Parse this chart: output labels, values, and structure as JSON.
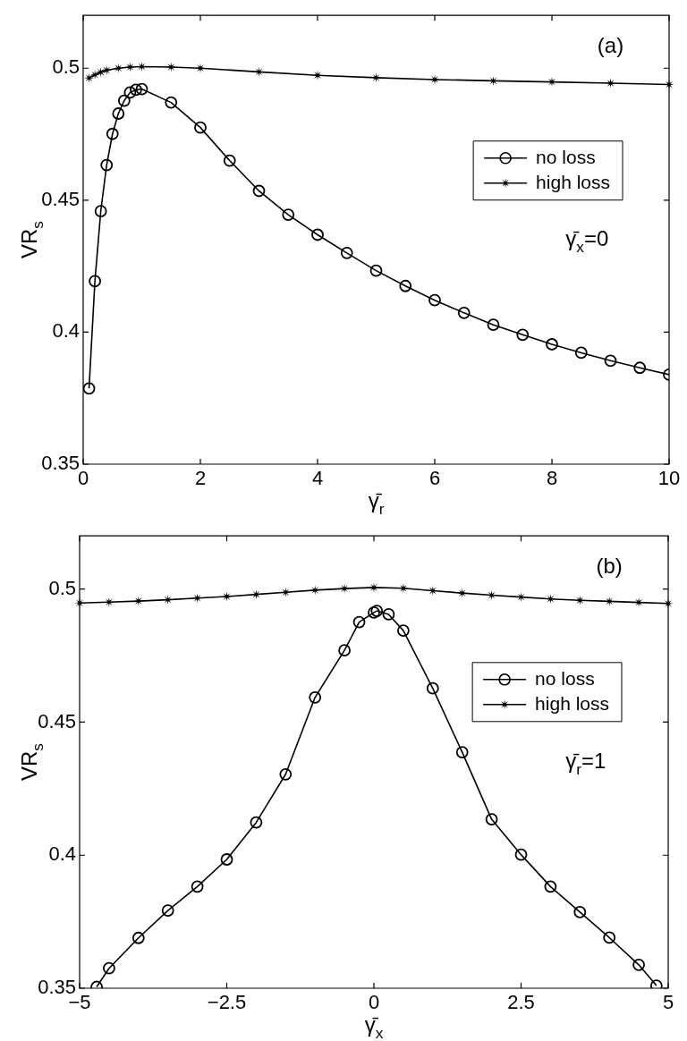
{
  "chart_data": [
    {
      "type": "line",
      "xlabel": "γ̄$_{r}$",
      "ylabel": "VR$_{s}$",
      "xlim": [
        0,
        10
      ],
      "ylim": [
        0.35,
        0.52
      ],
      "xticks": [
        0,
        2,
        4,
        6,
        8,
        10
      ],
      "yticks": [
        0.35,
        0.4,
        0.45,
        0.5
      ],
      "legend": "right",
      "line_style": "solid",
      "annotations": [
        "(a)",
        "γ̄$_{x}$=0"
      ],
      "series": [
        {
          "name": "no loss",
          "color": "#000000",
          "marker": "circle",
          "x": [
            0.1,
            0.2,
            0.3,
            0.4,
            0.5,
            0.6,
            0.7,
            0.8,
            0.9,
            1.0,
            1.5,
            2,
            2.5,
            3,
            3.5,
            4,
            4.5,
            5,
            5.5,
            6,
            6.5,
            7,
            7.5,
            8,
            8.5,
            9,
            9.5,
            10
          ],
          "values": [
            0.3787,
            0.4193,
            0.4458,
            0.4633,
            0.4751,
            0.4828,
            0.4877,
            0.4908,
            0.4918,
            0.4921,
            0.487,
            0.4775,
            0.465,
            0.4535,
            0.4445,
            0.4369,
            0.43,
            0.4233,
            0.4175,
            0.4121,
            0.4073,
            0.4028,
            0.399,
            0.3954,
            0.3922,
            0.3892,
            0.3865,
            0.3839
          ]
        },
        {
          "name": "high loss",
          "color": "#000000",
          "marker": "star",
          "x": [
            0.1,
            0.2,
            0.3,
            0.4,
            0.6,
            0.8,
            1,
            1.5,
            2,
            3,
            4,
            5,
            6,
            7,
            8,
            9,
            10
          ],
          "values": [
            0.4963,
            0.4975,
            0.4985,
            0.4992,
            0.5,
            0.5004,
            0.5006,
            0.5004,
            0.5,
            0.4986,
            0.4973,
            0.4964,
            0.4957,
            0.4952,
            0.4948,
            0.4943,
            0.4938
          ]
        }
      ]
    },
    {
      "type": "line",
      "xlabel": "γ̄$_{x}$",
      "ylabel": "VR$_{s}$",
      "xlim": [
        -5,
        5
      ],
      "ylim": [
        0.35,
        0.52
      ],
      "xticks": [
        -5,
        -2.5,
        0,
        2.5,
        5
      ],
      "yticks": [
        0.35,
        0.4,
        0.45,
        0.5
      ],
      "legend": "right",
      "line_style": "solid",
      "annotations": [
        "(b)",
        "γ̄$_{r}$=1"
      ],
      "series": [
        {
          "name": "no loss",
          "color": "#000000",
          "marker": "circle",
          "x": [
            -4.71,
            -4.5,
            -4,
            -3.5,
            -3,
            -2.5,
            -2,
            -1.5,
            -1,
            -0.5,
            -0.25,
            0,
            0.05,
            0.25,
            0.5,
            1,
            1.5,
            2,
            2.5,
            3,
            3.5,
            4,
            4.5,
            4.8
          ],
          "values": [
            0.3505,
            0.3575,
            0.3689,
            0.3792,
            0.3882,
            0.3984,
            0.4123,
            0.4304,
            0.4593,
            0.477,
            0.4876,
            0.4912,
            0.4918,
            0.4905,
            0.4844,
            0.4627,
            0.4387,
            0.4135,
            0.4002,
            0.3882,
            0.3786,
            0.369,
            0.3588,
            0.351
          ]
        },
        {
          "name": "high loss",
          "color": "#000000",
          "marker": "star",
          "x": [
            -5,
            -4.5,
            -4,
            -3.5,
            -3,
            -2.5,
            -2,
            -1.5,
            -1,
            -0.5,
            0,
            0.5,
            1,
            1.5,
            2,
            2.5,
            3,
            3.5,
            4,
            4.5,
            5
          ],
          "values": [
            0.4948,
            0.4951,
            0.4955,
            0.496,
            0.4966,
            0.4972,
            0.498,
            0.4988,
            0.4996,
            0.5002,
            0.5006,
            0.5003,
            0.4994,
            0.4985,
            0.4977,
            0.497,
            0.4963,
            0.4958,
            0.4954,
            0.495,
            0.4946
          ]
        }
      ]
    }
  ]
}
